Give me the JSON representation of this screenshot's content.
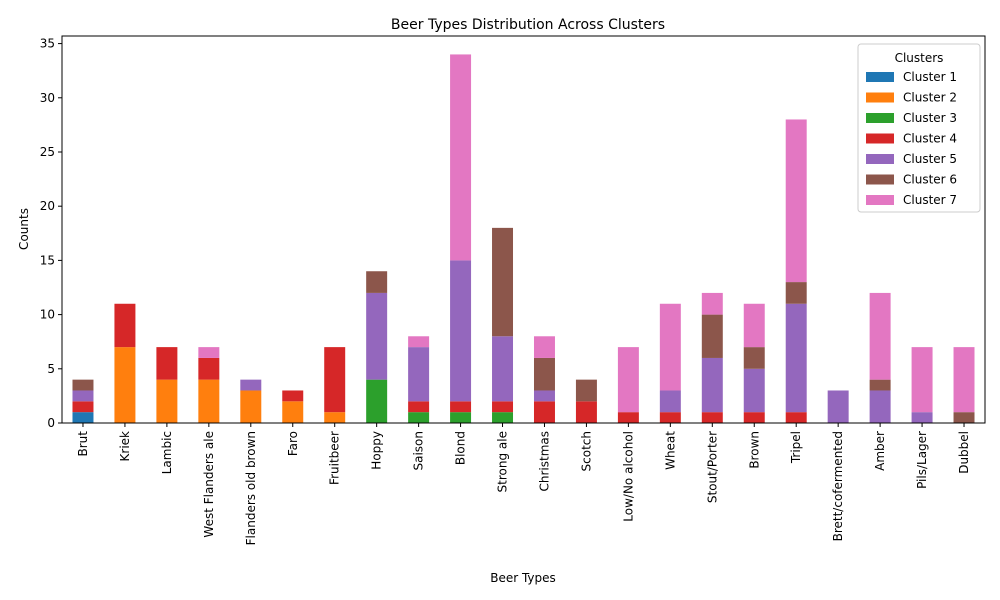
{
  "chart_data": {
    "type": "bar",
    "stacked": true,
    "title": "Beer Types Distribution Across Clusters",
    "xlabel": "Beer Types",
    "ylabel": "Counts",
    "ylim": [
      0,
      35.7
    ],
    "yticks": [
      0,
      5,
      10,
      15,
      20,
      25,
      30,
      35
    ],
    "grid": false,
    "legend": {
      "title": "Clusters",
      "position": "top-right"
    },
    "categories": [
      "Brut",
      "Kriek",
      "Lambic",
      "West Flanders ale",
      "Flanders old brown",
      "Faro",
      "Fruitbeer",
      "Hoppy",
      "Saison",
      "Blond",
      "Strong ale",
      "Christmas",
      "Scotch",
      "Low/No alcohol",
      "Wheat",
      "Stout/Porter",
      "Brown",
      "Tripel",
      "Brett/cofermented",
      "Amber",
      "Pils/Lager",
      "Dubbel"
    ],
    "series": [
      {
        "name": "Cluster 1",
        "color": "#1f77b4",
        "values": [
          1,
          0,
          0,
          0,
          0,
          0,
          0,
          0,
          0,
          0,
          0,
          0,
          0,
          0,
          0,
          0,
          0,
          0,
          0,
          0,
          0,
          0
        ]
      },
      {
        "name": "Cluster 2",
        "color": "#ff7f0e",
        "values": [
          0,
          7,
          4,
          4,
          3,
          2,
          1,
          0,
          0,
          0,
          0,
          0,
          0,
          0,
          0,
          0,
          0,
          0,
          0,
          0,
          0,
          0
        ]
      },
      {
        "name": "Cluster 3",
        "color": "#2ca02c",
        "values": [
          0,
          0,
          0,
          0,
          0,
          0,
          0,
          4,
          1,
          1,
          1,
          0,
          0,
          0,
          0,
          0,
          0,
          0,
          0,
          0,
          0,
          0
        ]
      },
      {
        "name": "Cluster 4",
        "color": "#d62728",
        "values": [
          1,
          4,
          3,
          2,
          0,
          1,
          6,
          0,
          1,
          1,
          1,
          2,
          2,
          1,
          1,
          1,
          1,
          1,
          0,
          0,
          0,
          0
        ]
      },
      {
        "name": "Cluster 5",
        "color": "#9467bd",
        "values": [
          1,
          0,
          0,
          0,
          1,
          0,
          0,
          8,
          5,
          13,
          6,
          1,
          0,
          0,
          2,
          5,
          4,
          10,
          3,
          3,
          1,
          0
        ]
      },
      {
        "name": "Cluster 6",
        "color": "#8c564b",
        "values": [
          1,
          0,
          0,
          0,
          0,
          0,
          0,
          2,
          0,
          0,
          10,
          3,
          2,
          0,
          0,
          4,
          2,
          2,
          0,
          1,
          0,
          1
        ]
      },
      {
        "name": "Cluster 7",
        "color": "#e377c2",
        "values": [
          0,
          0,
          0,
          1,
          0,
          0,
          0,
          0,
          1,
          19,
          0,
          2,
          0,
          6,
          8,
          2,
          4,
          15,
          0,
          8,
          6,
          6
        ]
      }
    ]
  }
}
